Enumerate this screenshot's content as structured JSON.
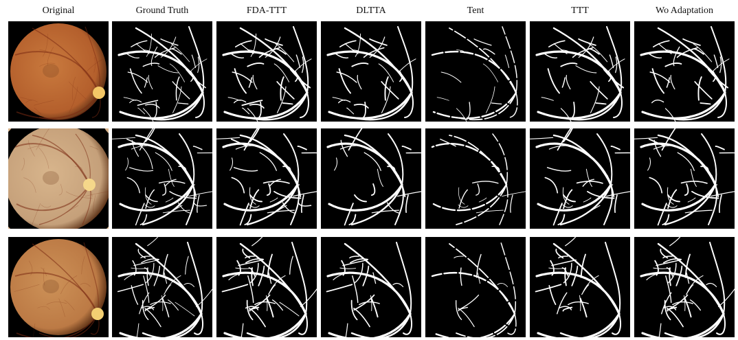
{
  "columns": {
    "original": "Original",
    "ground_truth": "Ground Truth",
    "fda_ttt": "FDA-TTT",
    "dltta": "DLTTA",
    "tent": "Tent",
    "ttt": "TTT",
    "wo_adaptation": "Wo Adaptation"
  },
  "rows": [
    {
      "fundus_color": "#b45f2c",
      "fundus_highlight": "#c97a3e",
      "disc_color": "#f3c766"
    },
    {
      "fundus_color": "#c5a07a",
      "fundus_highlight": "#d8b58c",
      "disc_color": "#f5d78a"
    },
    {
      "fundus_color": "#bc7a45",
      "fundus_highlight": "#cd9258",
      "disc_color": "#f2cf72"
    }
  ],
  "colors": {
    "background": "#ffffff",
    "mask_background": "#000000",
    "vessel": "#ffffff"
  }
}
